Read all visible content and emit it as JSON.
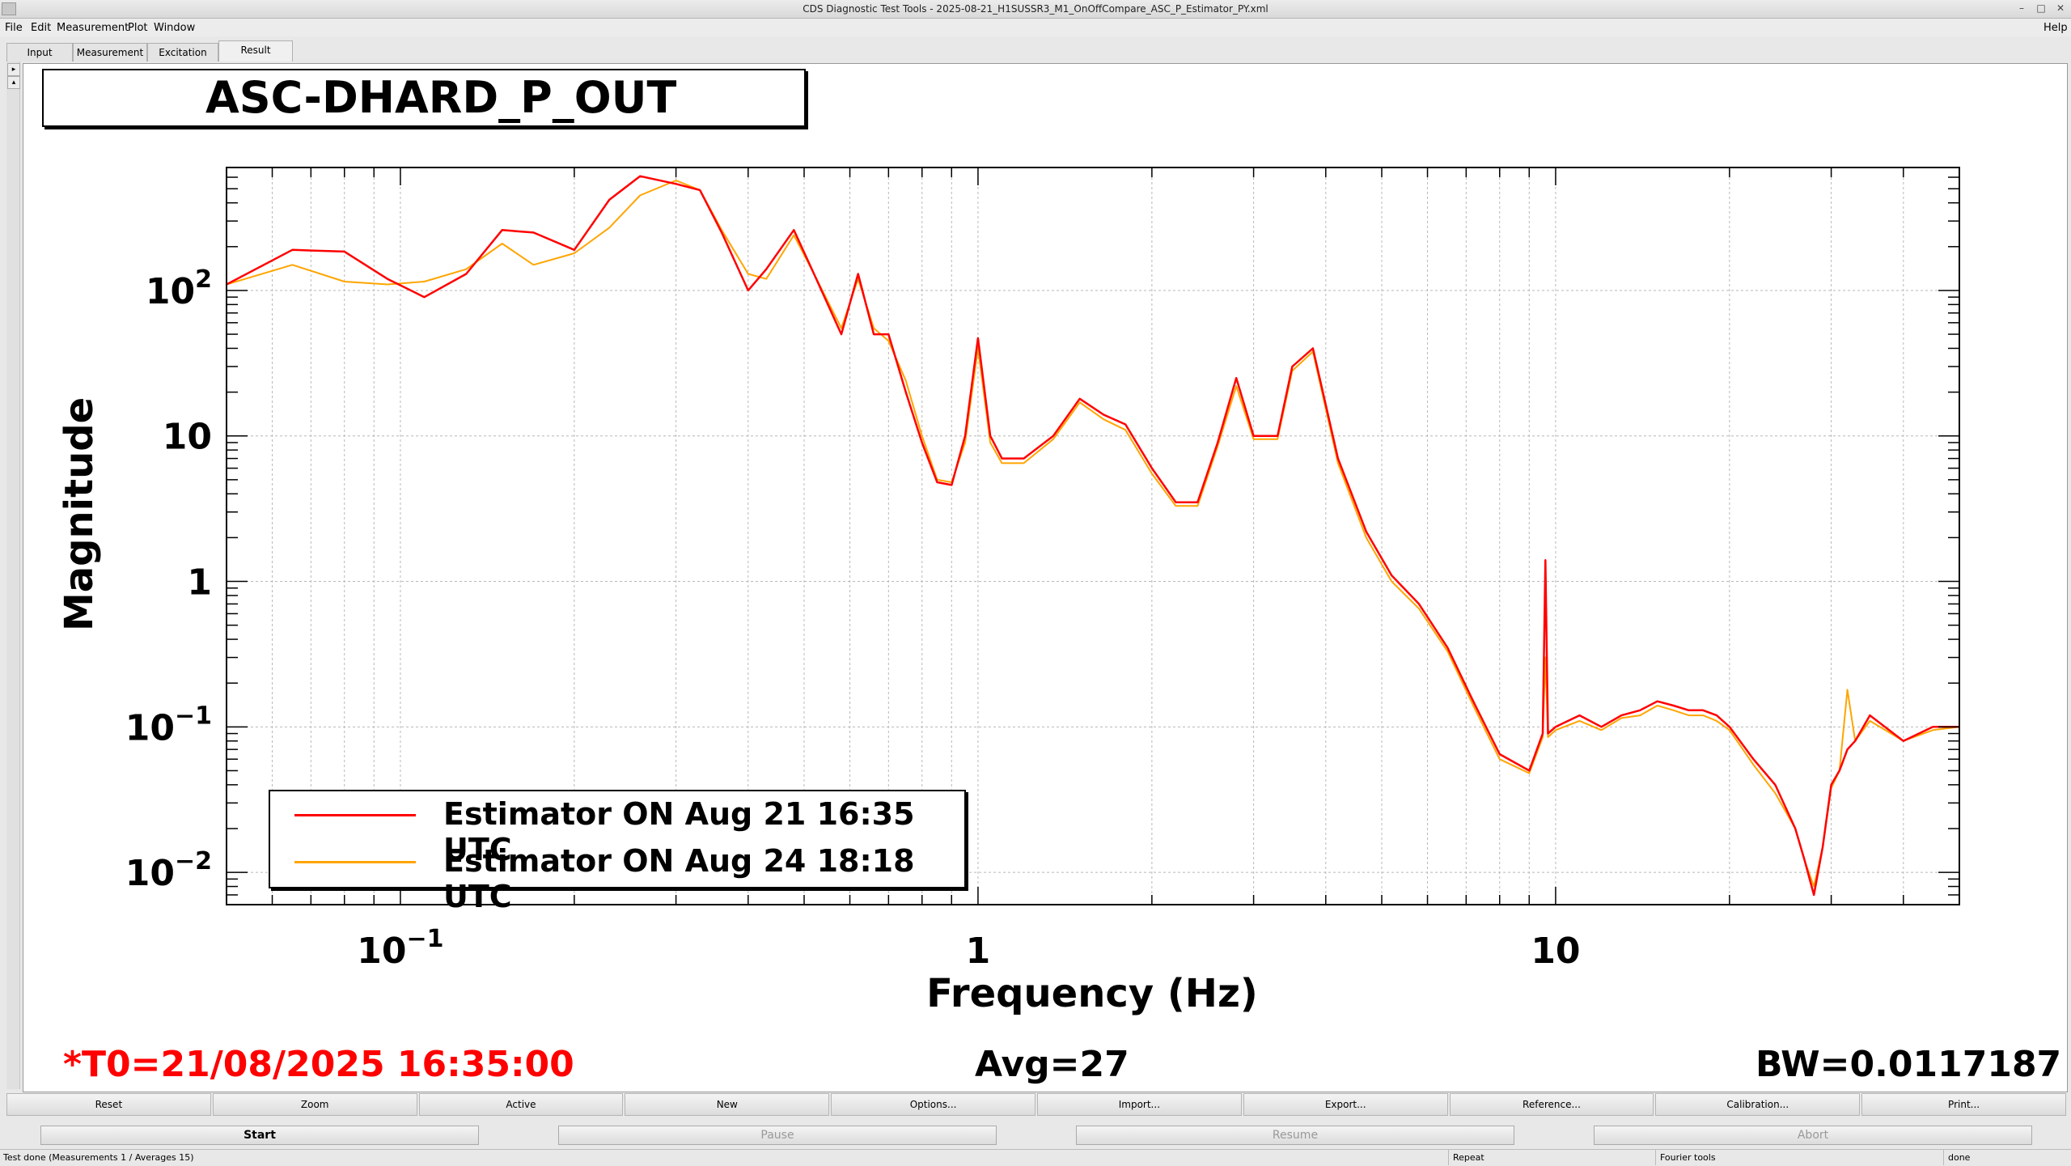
{
  "window": {
    "title": "CDS Diagnostic Test Tools - 2025-08-21_H1SUSSR3_M1_OnOffCompare_ASC_P_Estimator_PY.xml"
  },
  "menu": {
    "file": "File",
    "edit": "Edit",
    "measurement": "Measurement",
    "plot": "Plot",
    "window": "Window",
    "help": "Help"
  },
  "tabs": {
    "input": "Input",
    "measurement": "Measurement",
    "excitation": "Excitation",
    "result": "Result"
  },
  "plot_title": "ASC-DHARD_P_OUT",
  "info": {
    "t0": "*T0=21/08/2025 16:35:00",
    "avg": "Avg=27",
    "bw": "BW=0.0117187"
  },
  "chart_data": {
    "type": "line",
    "title": "ASC-DHARD_P_OUT",
    "xlabel": "Frequency (Hz)",
    "ylabel": "Magnitude",
    "xscale": "log",
    "yscale": "log",
    "xlim": [
      0.05,
      50
    ],
    "ylim": [
      0.006,
      700
    ],
    "grid": true,
    "legend_position": "bottom-left",
    "x_ticks": [
      0.1,
      1,
      10
    ],
    "x_tick_labels": [
      "10^-1",
      "1",
      "10"
    ],
    "y_ticks": [
      0.01,
      0.1,
      1,
      10,
      100
    ],
    "y_tick_labels": [
      "10^-2",
      "10^-1",
      "1",
      "10",
      "10^2"
    ],
    "series": [
      {
        "name": "Estimator ON Aug 21 16:35 UTC",
        "color": "#ff0000",
        "x": [
          0.05,
          0.065,
          0.08,
          0.095,
          0.11,
          0.13,
          0.15,
          0.17,
          0.2,
          0.23,
          0.26,
          0.3,
          0.33,
          0.36,
          0.4,
          0.43,
          0.48,
          0.52,
          0.58,
          0.62,
          0.66,
          0.7,
          0.75,
          0.8,
          0.85,
          0.9,
          0.95,
          1.0,
          1.05,
          1.1,
          1.2,
          1.35,
          1.5,
          1.65,
          1.8,
          2.0,
          2.2,
          2.4,
          2.6,
          2.8,
          3.0,
          3.3,
          3.5,
          3.8,
          4.2,
          4.7,
          5.2,
          5.8,
          6.5,
          7.2,
          8.0,
          9.0,
          9.5,
          9.6,
          9.7,
          10.0,
          11,
          12,
          13,
          14,
          15,
          16,
          17,
          18,
          19,
          20,
          22,
          24,
          26,
          27,
          28,
          29,
          30,
          31,
          32,
          33,
          35,
          40,
          45,
          50
        ],
        "y": [
          110,
          190,
          185,
          120,
          90,
          130,
          260,
          250,
          190,
          420,
          610,
          540,
          490,
          250,
          100,
          140,
          260,
          130,
          50,
          130,
          50,
          50,
          20,
          9,
          4.8,
          4.6,
          10,
          47,
          10,
          7,
          7,
          10,
          18,
          14,
          12,
          6,
          3.5,
          3.5,
          9,
          25,
          10,
          10,
          30,
          40,
          7,
          2.2,
          1.1,
          0.7,
          0.35,
          0.15,
          0.065,
          0.05,
          0.09,
          1.4,
          0.09,
          0.1,
          0.12,
          0.1,
          0.12,
          0.13,
          0.15,
          0.14,
          0.13,
          0.13,
          0.12,
          0.1,
          0.06,
          0.04,
          0.02,
          0.012,
          0.007,
          0.015,
          0.04,
          0.05,
          0.07,
          0.08,
          0.12,
          0.08,
          0.1,
          0.1
        ]
      },
      {
        "name": "Estimator ON Aug 24 18:18 UTC",
        "color": "#ffa500",
        "x": [
          0.05,
          0.065,
          0.08,
          0.095,
          0.11,
          0.13,
          0.15,
          0.17,
          0.2,
          0.23,
          0.26,
          0.3,
          0.33,
          0.36,
          0.4,
          0.43,
          0.48,
          0.52,
          0.58,
          0.62,
          0.66,
          0.7,
          0.75,
          0.8,
          0.85,
          0.9,
          0.95,
          1.0,
          1.05,
          1.1,
          1.2,
          1.35,
          1.5,
          1.65,
          1.8,
          2.0,
          2.2,
          2.4,
          2.6,
          2.8,
          3.0,
          3.3,
          3.5,
          3.8,
          4.2,
          4.7,
          5.2,
          5.8,
          6.5,
          7.2,
          8.0,
          9.0,
          9.5,
          9.6,
          9.7,
          10.0,
          11,
          12,
          13,
          14,
          15,
          16,
          17,
          18,
          19,
          20,
          22,
          24,
          26,
          27,
          28,
          29,
          30,
          31,
          32,
          33,
          35,
          40,
          45,
          50
        ],
        "y": [
          110,
          150,
          115,
          110,
          115,
          140,
          210,
          150,
          180,
          270,
          450,
          570,
          490,
          260,
          130,
          120,
          240,
          130,
          55,
          120,
          55,
          45,
          24,
          10,
          5,
          4.8,
          9,
          40,
          9,
          6.5,
          6.5,
          9.5,
          17,
          13,
          11,
          5.5,
          3.3,
          3.3,
          8.5,
          22,
          9.5,
          9.5,
          28,
          38,
          6.5,
          2.0,
          1.0,
          0.65,
          0.33,
          0.14,
          0.06,
          0.048,
          0.085,
          0.3,
          0.085,
          0.095,
          0.11,
          0.095,
          0.115,
          0.12,
          0.14,
          0.13,
          0.12,
          0.12,
          0.11,
          0.095,
          0.055,
          0.035,
          0.02,
          0.012,
          0.008,
          0.015,
          0.038,
          0.05,
          0.18,
          0.08,
          0.11,
          0.08,
          0.095,
          0.1
        ]
      }
    ]
  },
  "buttons": {
    "reset": "Reset",
    "zoom": "Zoom",
    "active": "Active",
    "new": "New",
    "options": "Options...",
    "import": "Import...",
    "export": "Export...",
    "reference": "Reference...",
    "calibration": "Calibration...",
    "print": "Print...",
    "start": "Start",
    "pause": "Pause",
    "resume": "Resume",
    "abort": "Abort"
  },
  "status": {
    "main": "Test done (Measurements 1 / Averages 15)",
    "repeat": "Repeat",
    "fourier": "Fourier tools",
    "done": "done"
  }
}
